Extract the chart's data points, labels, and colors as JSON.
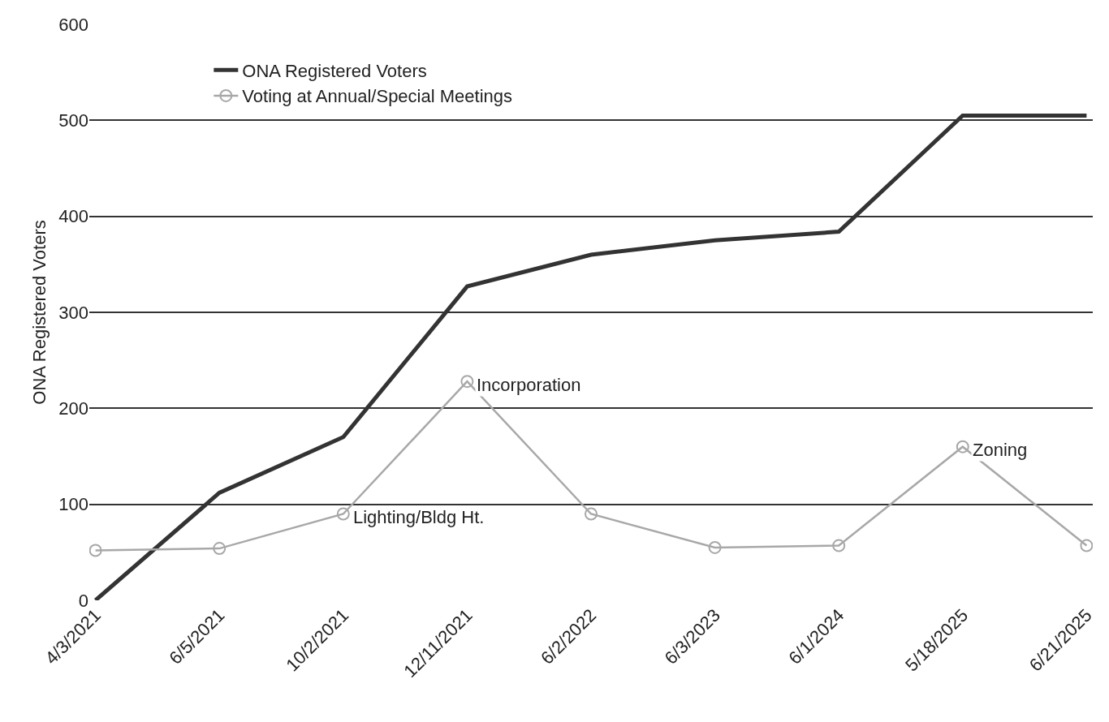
{
  "chart_data": {
    "type": "line",
    "ylabel": "ONA Registered Voters",
    "categories": [
      "4/3/2021",
      "6/5/2021",
      "10/2/2021",
      "12/11/2021",
      "6/2/2022",
      "6/3/2023",
      "6/1/2024",
      "5/18/2025",
      "6/21/2025"
    ],
    "series": [
      {
        "name": "ONA Registered Voters",
        "color": "#333333",
        "marker": "none",
        "values": [
          0,
          112,
          170,
          327,
          360,
          375,
          384,
          505,
          505
        ]
      },
      {
        "name": "Voting at Annual/Special Meetings",
        "color": "#a8a8a8",
        "marker": "circle",
        "values": [
          52,
          54,
          90,
          228,
          90,
          55,
          57,
          160,
          57
        ]
      }
    ],
    "annotations": [
      {
        "text": "Lighting/Bldg Ht.",
        "x": "10/2/2021",
        "y": 90
      },
      {
        "text": "Incorporation",
        "x": "12/11/2021",
        "y": 228
      },
      {
        "text": "Zoning",
        "x": "5/18/2025",
        "y": 160
      }
    ],
    "ylim": [
      0,
      600
    ],
    "yticks": [
      0,
      100,
      200,
      300,
      400,
      500,
      600
    ],
    "grid": "y",
    "legend": "top left",
    "line_style": "solid"
  }
}
